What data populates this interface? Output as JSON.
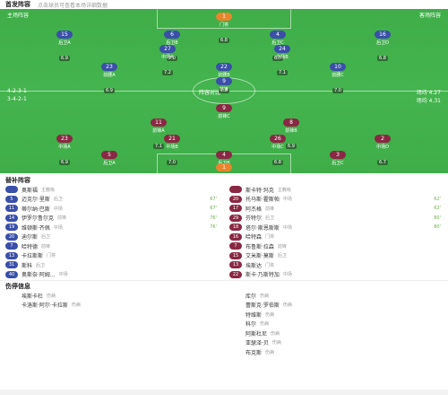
{
  "header": {
    "title": "首发阵容",
    "subtitle": "点击球员可查看本场详细数据"
  },
  "pitch": {
    "home_formation": "4-2-3-1",
    "away_formation": "3-4-2-1",
    "home_label": "主队",
    "away_label": "客队",
    "center_text": "阵容对比",
    "home_avg": "场均 4.27",
    "away_avg": "场均 4.31",
    "top_left": "主场阵容",
    "top_right": "客场阵容"
  },
  "home_players": [
    {
      "num": "1",
      "name": "门将",
      "rating": "6.8"
    },
    {
      "num": "15",
      "name": "后卫A",
      "rating": "6.9"
    },
    {
      "num": "6",
      "name": "后卫B",
      "rating": "7.0"
    },
    {
      "num": "4",
      "name": "后卫C",
      "rating": "6.7"
    },
    {
      "num": "16",
      "name": "后卫D",
      "rating": "6.8"
    },
    {
      "num": "27",
      "name": "中场A",
      "rating": "7.2"
    },
    {
      "num": "24",
      "name": "中场B",
      "rating": "7.1"
    },
    {
      "num": "23",
      "name": "前腰A",
      "rating": "6.9"
    },
    {
      "num": "22",
      "name": "前腰B",
      "rating": "7.3"
    },
    {
      "num": "10",
      "name": "前腰C",
      "rating": "7.0"
    },
    {
      "num": "9",
      "name": "前锋",
      "rating": "6.6"
    }
  ],
  "away_players": [
    {
      "num": "1",
      "name": "门将",
      "rating": "6.5"
    },
    {
      "num": "5",
      "name": "后卫A",
      "rating": "6.6"
    },
    {
      "num": "4",
      "name": "后卫B",
      "rating": "6.8"
    },
    {
      "num": "3",
      "name": "后卫C",
      "rating": "6.7"
    },
    {
      "num": "23",
      "name": "中场A",
      "rating": "6.9"
    },
    {
      "num": "21",
      "name": "中场B",
      "rating": "7.0"
    },
    {
      "num": "26",
      "name": "中场C",
      "rating": "6.8"
    },
    {
      "num": "2",
      "name": "中场D",
      "rating": "6.7"
    },
    {
      "num": "11",
      "name": "前锋A",
      "rating": "7.1"
    },
    {
      "num": "8",
      "name": "前锋B",
      "rating": "6.9"
    },
    {
      "num": "9",
      "name": "前锋C",
      "rating": "6.6"
    }
  ],
  "subs_title": "替补阵容",
  "home_coach": "主教练",
  "away_coach": "主教练",
  "home_subs": [
    {
      "num": "",
      "name": "奥斯福",
      "sub": "主教练",
      "min": ""
    },
    {
      "num": "5",
      "name": "迈克尔·里斯",
      "sub": "后卫",
      "min": "67'"
    },
    {
      "num": "11",
      "name": "蒂尔纳·巴斯",
      "sub": "中场",
      "min": "67'"
    },
    {
      "num": "14",
      "name": "伊罗尔鲁尔克",
      "sub": "前锋",
      "min": "76'"
    },
    {
      "num": "19",
      "name": "维顿斯·齐佩",
      "sub": "中场",
      "min": "76'"
    },
    {
      "num": "20",
      "name": "迪尔斯",
      "sub": "后卫",
      "min": ""
    },
    {
      "num": "7",
      "name": "哈特德",
      "sub": "前锋",
      "min": ""
    },
    {
      "num": "13",
      "name": "卡拉斯斯",
      "sub": "门将",
      "min": ""
    },
    {
      "num": "31",
      "name": "斯科",
      "sub": "后卫",
      "min": ""
    },
    {
      "num": "40",
      "name": "奥斯奈·阿姆...",
      "sub": "中场",
      "min": ""
    }
  ],
  "away_subs": [
    {
      "num": "",
      "name": "斯卡特·玛克",
      "sub": "主教练",
      "min": ""
    },
    {
      "num": "20",
      "name": "托马斯·霍斯帕",
      "sub": "中场",
      "min": "62'"
    },
    {
      "num": "17",
      "name": "阿杰格",
      "sub": "前锋",
      "min": "62'"
    },
    {
      "num": "29",
      "name": "芬特尔",
      "sub": "后卫",
      "min": "80'"
    },
    {
      "num": "18",
      "name": "塔尔·斯恩斯斯",
      "sub": "中场",
      "min": "80'"
    },
    {
      "num": "16",
      "name": "哈特森",
      "sub": "门将",
      "min": ""
    },
    {
      "num": "7",
      "name": "布鲁斯·拉森",
      "sub": "前锋",
      "min": ""
    },
    {
      "num": "15",
      "name": "艾米斯·莫斯",
      "sub": "后卫",
      "min": ""
    },
    {
      "num": "13",
      "name": "埃斯达",
      "sub": "门将",
      "min": ""
    },
    {
      "num": "22",
      "name": "斯卡·乃斯特加",
      "sub": "中场",
      "min": ""
    }
  ],
  "injury_title": "伤停信息",
  "home_injuries": [
    {
      "name": "埃斯卡杜",
      "sub": "伤病"
    },
    {
      "name": "卡洛斯·阿尔·卡拉斯",
      "sub": "伤病"
    }
  ],
  "away_injuries": [
    {
      "name": "库尔",
      "sub": "伤病"
    },
    {
      "name": "蕾斯克·罗伯斯",
      "sub": "伤病"
    },
    {
      "name": "特维斯",
      "sub": "伤病"
    },
    {
      "name": "科尔",
      "sub": "伤病"
    },
    {
      "name": "阿斯杜尼",
      "sub": "伤病"
    },
    {
      "name": "亚瑟泽·贝",
      "sub": "伤病"
    },
    {
      "name": "布克斯",
      "sub": "伤病"
    }
  ],
  "colors": {
    "pitch": "#44b44e",
    "home": "#3a4fa8",
    "away": "#8a2844",
    "gk": "#e9852c"
  }
}
